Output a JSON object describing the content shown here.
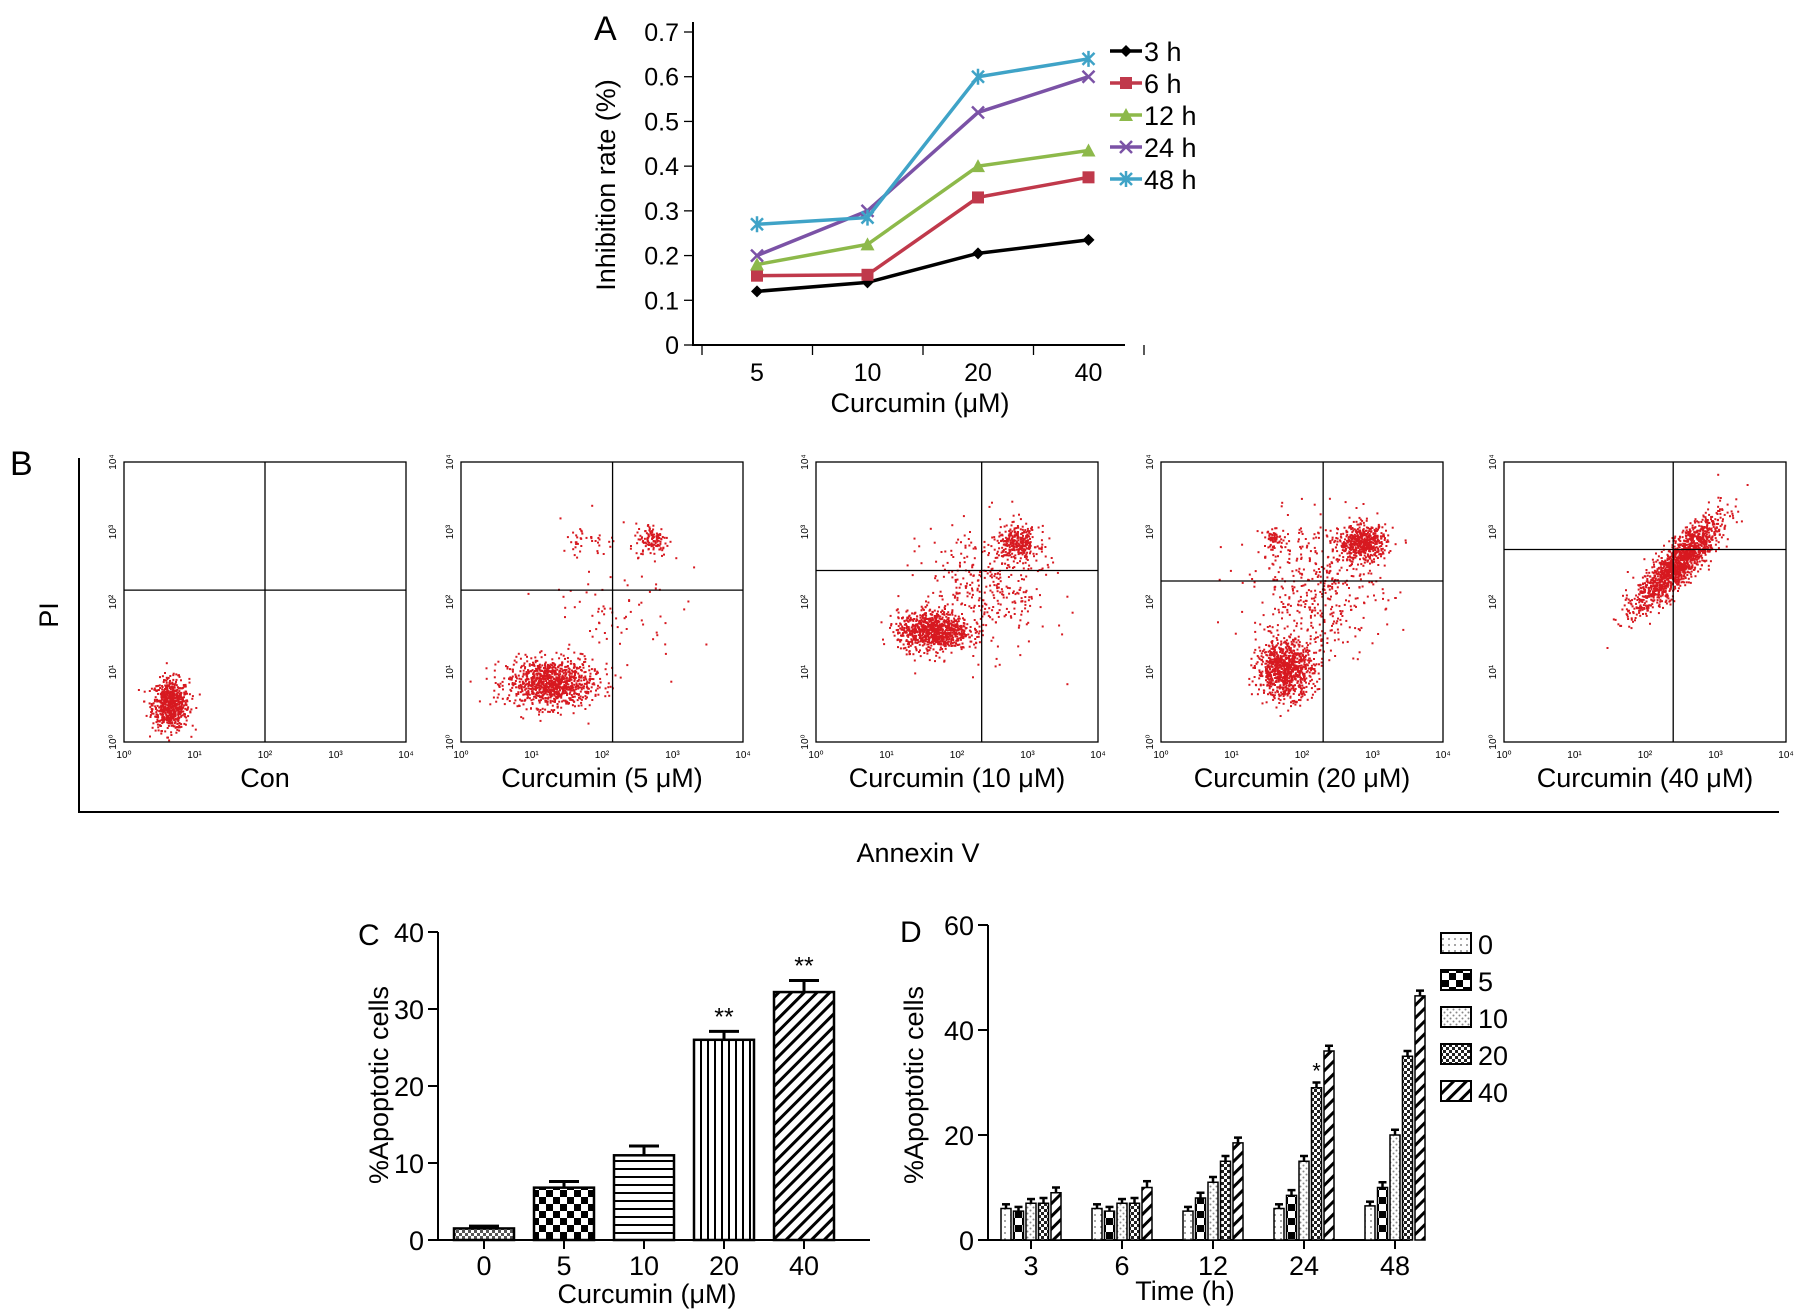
{
  "chart_data": [
    {
      "id": "A",
      "panel_label": "A",
      "type": "line",
      "title": "",
      "xlabel": "Curcumin (μM)",
      "ylabel": "Inhibition rate (%)",
      "categories": [
        "5",
        "10",
        "20",
        "40"
      ],
      "ylim": [
        0,
        0.7
      ],
      "yticks": [
        "0",
        "0.1",
        "0.2",
        "0.3",
        "0.4",
        "0.5",
        "0.6",
        "0.7"
      ],
      "legend_position": "top-right",
      "series": [
        {
          "name": "3 h",
          "color": "#000000",
          "marker": "diamond",
          "values": [
            0.12,
            0.14,
            0.205,
            0.235
          ]
        },
        {
          "name": "6 h",
          "color": "#c0394b",
          "marker": "square",
          "values": [
            0.155,
            0.157,
            0.33,
            0.375
          ]
        },
        {
          "name": "12 h",
          "color": "#8db94a",
          "marker": "triangle",
          "values": [
            0.18,
            0.225,
            0.4,
            0.435
          ]
        },
        {
          "name": "24 h",
          "color": "#7b52a6",
          "marker": "x",
          "values": [
            0.2,
            0.3,
            0.52,
            0.6
          ]
        },
        {
          "name": "48 h",
          "color": "#3fa3c7",
          "marker": "star",
          "values": [
            0.27,
            0.285,
            0.6,
            0.64
          ]
        }
      ]
    },
    {
      "id": "B",
      "panel_label": "B",
      "type": "scatter",
      "xlabel": "Annexin V",
      "ylabel": "PI",
      "axis_scale": "log",
      "axis_range": [
        1,
        10000
      ],
      "tick_labels": [
        "10⁰",
        "10¹",
        "10²",
        "10³",
        "10⁴"
      ],
      "point_color": "#d71920",
      "plots": [
        {
          "label": "Con",
          "gate_x": 2.0,
          "gate_y": 2.17,
          "clusters": [
            {
              "cx": 0.65,
              "cy": 0.55,
              "sx": 0.13,
              "sy": 0.18,
              "n": 700
            }
          ]
        },
        {
          "label": "Curcumin (5 μM)",
          "gate_x": 2.15,
          "gate_y": 2.17,
          "clusters": [
            {
              "cx": 1.25,
              "cy": 0.85,
              "sx": 0.3,
              "sy": 0.17,
              "n": 1000
            },
            {
              "cx": 2.7,
              "cy": 2.9,
              "sx": 0.12,
              "sy": 0.12,
              "n": 120
            },
            {
              "cx": 1.8,
              "cy": 2.9,
              "sx": 0.2,
              "sy": 0.1,
              "n": 35
            },
            {
              "cx": 2.1,
              "cy": 1.9,
              "sx": 0.5,
              "sy": 0.6,
              "n": 90
            }
          ]
        },
        {
          "label": "Curcumin (10 μM)",
          "gate_x": 2.35,
          "gate_y": 2.45,
          "clusters": [
            {
              "cx": 1.65,
              "cy": 1.6,
              "sx": 0.25,
              "sy": 0.14,
              "n": 900
            },
            {
              "cx": 2.85,
              "cy": 2.85,
              "sx": 0.15,
              "sy": 0.12,
              "n": 300
            },
            {
              "cx": 2.4,
              "cy": 2.2,
              "sx": 0.45,
              "sy": 0.45,
              "n": 350
            }
          ]
        },
        {
          "label": "Curcumin (20 μM)",
          "gate_x": 2.3,
          "gate_y": 2.3,
          "clusters": [
            {
              "cx": 1.75,
              "cy": 1.05,
              "sx": 0.2,
              "sy": 0.2,
              "n": 900
            },
            {
              "cx": 2.85,
              "cy": 2.85,
              "sx": 0.17,
              "sy": 0.13,
              "n": 550
            },
            {
              "cx": 1.6,
              "cy": 2.9,
              "sx": 0.08,
              "sy": 0.07,
              "n": 60
            },
            {
              "cx": 2.2,
              "cy": 2.2,
              "sx": 0.45,
              "sy": 0.5,
              "n": 450
            }
          ]
        },
        {
          "label": "Curcumin (40 μM)",
          "gate_x": 2.4,
          "gate_y": 2.75,
          "clusters": [
            {
              "cx": 2.45,
              "cy": 2.55,
              "sx": 0.3,
              "sy": 0.33,
              "rho": 0.85,
              "n": 1500
            }
          ]
        }
      ]
    },
    {
      "id": "C",
      "panel_label": "C",
      "type": "bar",
      "xlabel": "Curcumin (μM)",
      "ylabel": "%Apoptotic cells",
      "categories": [
        "0",
        "5",
        "10",
        "20",
        "40"
      ],
      "values": [
        1.5,
        6.8,
        11.0,
        26.0,
        32.2
      ],
      "errors": [
        0.3,
        0.8,
        1.2,
        1.1,
        1.5
      ],
      "significance": [
        "",
        "",
        "",
        "**",
        "**"
      ],
      "patterns": [
        "fine-check",
        "checker",
        "hlines",
        "vlines",
        "diagonal"
      ],
      "ylim": [
        0,
        40
      ],
      "yticks": [
        "0",
        "10",
        "20",
        "30",
        "40"
      ]
    },
    {
      "id": "D",
      "panel_label": "D",
      "type": "bar",
      "xlabel": "Time (h)",
      "ylabel": "%Apoptotic cells",
      "categories": [
        "3",
        "6",
        "12",
        "24",
        "48"
      ],
      "ylim": [
        0,
        60
      ],
      "yticks": [
        "0",
        "20",
        "40",
        "60"
      ],
      "legend_position": "right",
      "series": [
        {
          "name": "0",
          "pattern": "dots",
          "values": [
            6,
            6,
            5.5,
            6,
            6.5
          ],
          "errors": [
            0.8,
            0.8,
            0.8,
            0.8,
            0.8
          ],
          "significance": [
            "",
            "",
            "",
            "",
            ""
          ]
        },
        {
          "name": "5",
          "pattern": "checker",
          "values": [
            5.5,
            5.5,
            8,
            8.5,
            10
          ],
          "errors": [
            0.8,
            0.8,
            1,
            1,
            1
          ],
          "significance": [
            "",
            "",
            "",
            "",
            ""
          ]
        },
        {
          "name": "10",
          "pattern": "speckle",
          "values": [
            7,
            7,
            11,
            15,
            20
          ],
          "errors": [
            0.8,
            0.8,
            1,
            1,
            1
          ],
          "significance": [
            "",
            "",
            "",
            "",
            ""
          ]
        },
        {
          "name": "20",
          "pattern": "dark-check",
          "values": [
            7,
            7,
            15,
            29,
            35
          ],
          "errors": [
            1,
            1,
            1,
            1,
            1
          ],
          "significance": [
            "",
            "",
            "",
            "*",
            ""
          ]
        },
        {
          "name": "40",
          "pattern": "diagonal",
          "values": [
            9,
            10,
            18.5,
            36,
            46.5
          ],
          "errors": [
            1,
            1.2,
            1,
            1,
            1
          ],
          "significance": [
            "",
            "",
            "",
            "",
            ""
          ]
        }
      ]
    }
  ]
}
